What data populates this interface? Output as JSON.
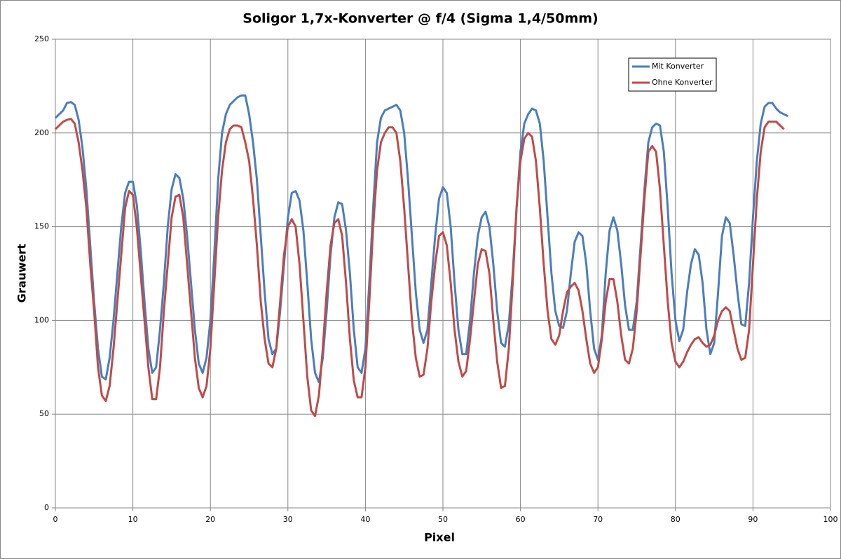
{
  "chart_data": {
    "type": "line",
    "title": "Soligor 1,7x-Konverter @ f/4 (Sigma 1,4/50mm)",
    "xlabel": "Pixel",
    "ylabel": "Grauwert",
    "xlim": [
      0,
      100
    ],
    "xticks": [
      0,
      10,
      20,
      30,
      40,
      50,
      60,
      70,
      80,
      90,
      100
    ],
    "ylim": [
      0,
      250
    ],
    "yticks": [
      0,
      50,
      100,
      150,
      200,
      250
    ],
    "grid": true,
    "legend": "top-right",
    "x": [
      0,
      0.5,
      1,
      1.5,
      2,
      2.5,
      3,
      3.5,
      4,
      4.5,
      5,
      5.5,
      6,
      6.5,
      7,
      7.5,
      8,
      8.5,
      9,
      9.5,
      10,
      10.5,
      11,
      11.5,
      12,
      12.5,
      13,
      13.5,
      14,
      14.5,
      15,
      15.5,
      16,
      16.5,
      17,
      17.5,
      18,
      18.5,
      19,
      19.5,
      20,
      20.5,
      21,
      21.5,
      22,
      22.5,
      23,
      23.5,
      24,
      24.5,
      25,
      25.5,
      26,
      26.5,
      27,
      27.5,
      28,
      28.5,
      29,
      29.5,
      30,
      30.5,
      31,
      31.5,
      32,
      32.5,
      33,
      33.5,
      34,
      34.5,
      35,
      35.5,
      36,
      36.5,
      37,
      37.5,
      38,
      38.5,
      39,
      39.5,
      40,
      40.5,
      41,
      41.5,
      42,
      42.5,
      43,
      43.5,
      44,
      44.5,
      45,
      45.5,
      46,
      46.5,
      47,
      47.5,
      48,
      48.5,
      49,
      49.5,
      50,
      50.5,
      51,
      51.5,
      52,
      52.5,
      53,
      53.5,
      54,
      54.5,
      55,
      55.5,
      56,
      56.5,
      57,
      57.5,
      58,
      58.5,
      59,
      59.5,
      60,
      60.5,
      61,
      61.5,
      62,
      62.5,
      63,
      63.5,
      64,
      64.5,
      65,
      65.5,
      66,
      66.5,
      67,
      67.5,
      68,
      68.5,
      69,
      69.5,
      70,
      70.5,
      71,
      71.5,
      72,
      72.5,
      73,
      73.5,
      74,
      74.5,
      75,
      75.5,
      76,
      76.5,
      77,
      77.5,
      78,
      78.5,
      79,
      79.5,
      80,
      80.5,
      81,
      81.5,
      82,
      82.5,
      83,
      83.5,
      84,
      84.5,
      85,
      85.5,
      86,
      86.5,
      87,
      87.5,
      88,
      88.5,
      89,
      89.5,
      90,
      90.5,
      91,
      91.5,
      92,
      92.5,
      93,
      93.5,
      94,
      94.5
    ],
    "series": [
      {
        "name": "Mit Konverter",
        "color": "#4a7ebb",
        "values": [
          208,
          210,
          212,
          216,
          216.5,
          215,
          207,
          192,
          170,
          140,
          110,
          85,
          70,
          68.5,
          80,
          100,
          125,
          150,
          168,
          174,
          174,
          162,
          138,
          110,
          85,
          72,
          75,
          95,
          120,
          150,
          170,
          178,
          176,
          165,
          145,
          120,
          95,
          77,
          72,
          80,
          100,
          135,
          175,
          200,
          210,
          215,
          217,
          219,
          220,
          220,
          210,
          195,
          175,
          145,
          115,
          90,
          82,
          85,
          105,
          130,
          155,
          168,
          169,
          164,
          148,
          120,
          90,
          72,
          67,
          80,
          105,
          135,
          155,
          163,
          162,
          148,
          125,
          95,
          75,
          72,
          85,
          120,
          160,
          195,
          208,
          212,
          213,
          214,
          215,
          212,
          200,
          175,
          145,
          115,
          95,
          88,
          95,
          120,
          145,
          165,
          171,
          168,
          150,
          120,
          95,
          82,
          82,
          100,
          125,
          145,
          155,
          158,
          150,
          130,
          105,
          88,
          86,
          98,
          125,
          160,
          190,
          205,
          210,
          213,
          212,
          205,
          185,
          155,
          125,
          105,
          97,
          96,
          105,
          125,
          142,
          147,
          145,
          130,
          105,
          85,
          79,
          92,
          125,
          148,
          155,
          148,
          130,
          108,
          95,
          95,
          110,
          140,
          170,
          195,
          203,
          205,
          204,
          190,
          160,
          125,
          100,
          89,
          95,
          115,
          130,
          138,
          135,
          120,
          95,
          82,
          88,
          115,
          145,
          155,
          152,
          135,
          115,
          98,
          97,
          120,
          155,
          185,
          205,
          214,
          216,
          216,
          213,
          211,
          210,
          209
        ]
      },
      {
        "name": "Ohne Konverter",
        "color": "#be4b48",
        "values": [
          202,
          204,
          206,
          207,
          207.5,
          205,
          195,
          180,
          160,
          130,
          105,
          75,
          60,
          57,
          65,
          85,
          110,
          135,
          160,
          169,
          167,
          150,
          125,
          100,
          75,
          58,
          58,
          75,
          105,
          130,
          155,
          166,
          167,
          155,
          130,
          105,
          80,
          64,
          59,
          65,
          85,
          120,
          155,
          180,
          195,
          202,
          204,
          204,
          203,
          195,
          185,
          165,
          140,
          110,
          90,
          77,
          75,
          85,
          110,
          135,
          150,
          154,
          150,
          130,
          100,
          70,
          52,
          49,
          60,
          85,
          115,
          140,
          152,
          154,
          145,
          120,
          90,
          68,
          59,
          59,
          75,
          110,
          150,
          180,
          195,
          200,
          203,
          203,
          200,
          185,
          160,
          130,
          100,
          80,
          70,
          71,
          85,
          110,
          130,
          145,
          147,
          140,
          120,
          95,
          78,
          70,
          73,
          90,
          110,
          130,
          138,
          137,
          125,
          100,
          78,
          64,
          65,
          85,
          120,
          160,
          185,
          197,
          200,
          198,
          185,
          160,
          130,
          105,
          90,
          87,
          92,
          105,
          115,
          118,
          120,
          116,
          105,
          90,
          77,
          72,
          75,
          90,
          110,
          122,
          122,
          110,
          92,
          79,
          77,
          85,
          105,
          135,
          165,
          190,
          193,
          190,
          170,
          140,
          110,
          88,
          78,
          75,
          78,
          83,
          87,
          90,
          91,
          88,
          86,
          87,
          92,
          100,
          105,
          107,
          105,
          95,
          85,
          79,
          80,
          95,
          130,
          165,
          190,
          203,
          206,
          206,
          206,
          204,
          202,
          null
        ]
      }
    ]
  }
}
